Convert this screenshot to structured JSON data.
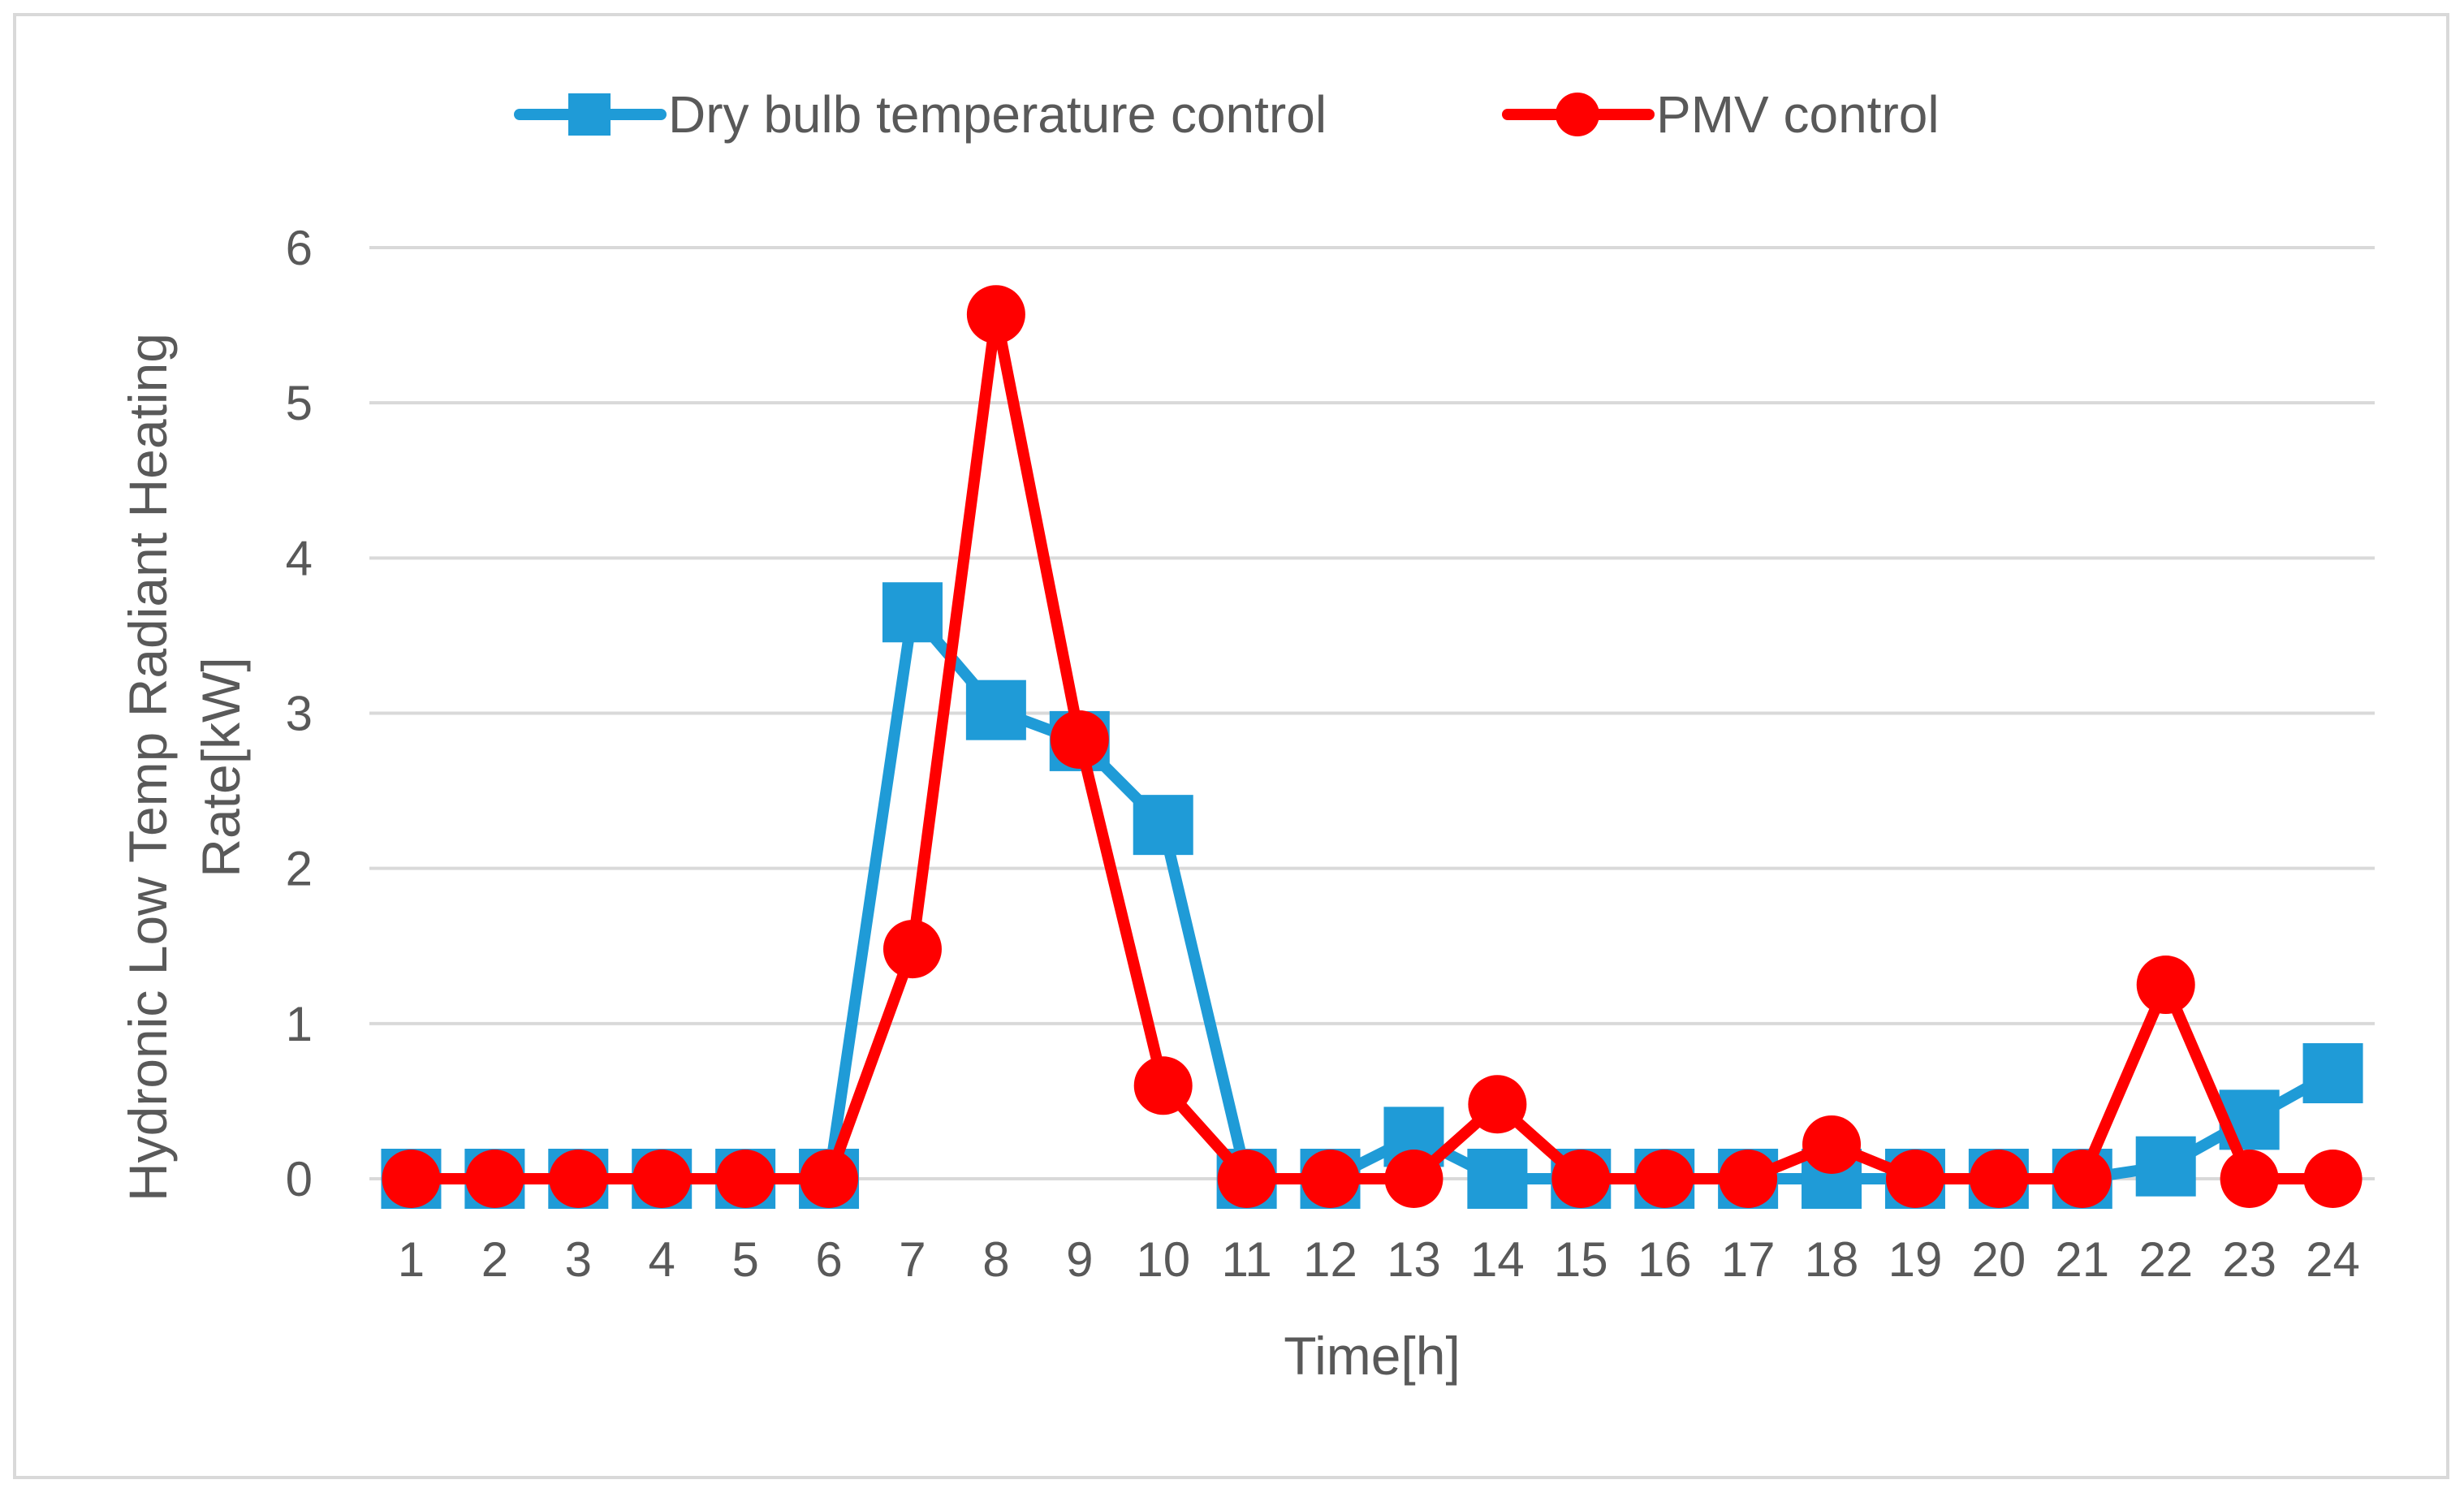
{
  "chart_data": {
    "type": "line",
    "title": "",
    "xlabel": "Time[h]",
    "ylabel_lines": [
      "Hydronic Low Temp Radiant Heating",
      "Rate[kW]"
    ],
    "categories": [
      "1",
      "2",
      "3",
      "4",
      "5",
      "6",
      "7",
      "8",
      "9",
      "10",
      "11",
      "12",
      "13",
      "14",
      "15",
      "16",
      "17",
      "18",
      "19",
      "20",
      "21",
      "22",
      "23",
      "24"
    ],
    "ylim": [
      0,
      6
    ],
    "yticks": [
      "0",
      "1",
      "2",
      "3",
      "4",
      "5",
      "6"
    ],
    "grid": true,
    "legend_position": "top",
    "series": [
      {
        "name": "Dry bulb temperature control",
        "color": "#1f9bd7",
        "marker": "square",
        "values": [
          0,
          0,
          0,
          0,
          0,
          0,
          3.65,
          3.02,
          2.82,
          2.28,
          0,
          0,
          0.27,
          0,
          0,
          0,
          0,
          0,
          0,
          0,
          0,
          0.08,
          0.38,
          0.68
        ]
      },
      {
        "name": "PMV control",
        "color": "#ff0000",
        "marker": "circle",
        "values": [
          0,
          0,
          0,
          0,
          0,
          0,
          1.48,
          5.57,
          2.83,
          0.6,
          0,
          0,
          0,
          0.48,
          0,
          0,
          0,
          0.22,
          0,
          0,
          0,
          1.25,
          0,
          0
        ]
      }
    ]
  }
}
